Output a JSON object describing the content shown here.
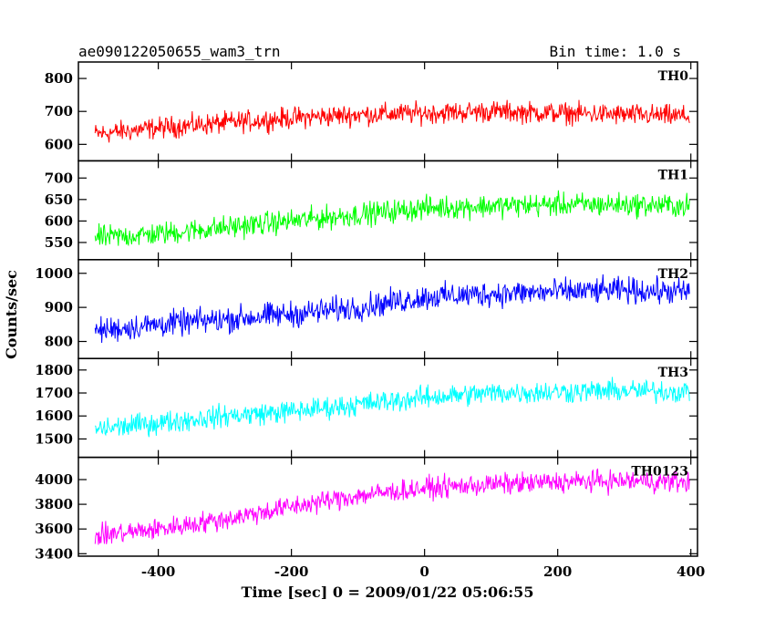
{
  "header": {
    "left_title": "ae090122050655_wam3_trn",
    "right_title": "Bin time: 1.0 s"
  },
  "chart_data": {
    "type": "line",
    "xlabel": "Time [sec] 0 = 2009/01/22 05:06:55",
    "ylabel": "Counts/sec",
    "xlim": [
      -520,
      410
    ],
    "x_ticks": [
      -400,
      -200,
      0,
      200,
      400
    ],
    "bin_time_s": 1.0,
    "panels": [
      {
        "name": "TH0",
        "color": "#ff0000",
        "ylim": [
          550,
          850
        ],
        "y_ticks": [
          600,
          700,
          800
        ],
        "trend": [
          [
            -500,
            630
          ],
          [
            -400,
            650
          ],
          [
            -300,
            665
          ],
          [
            -200,
            680
          ],
          [
            -100,
            690
          ],
          [
            0,
            695
          ],
          [
            100,
            700
          ],
          [
            200,
            695
          ],
          [
            300,
            690
          ],
          [
            400,
            685
          ]
        ],
        "noise": 30
      },
      {
        "name": "TH1",
        "color": "#00ff00",
        "ylim": [
          510,
          740
        ],
        "y_ticks": [
          550,
          600,
          650,
          700
        ],
        "trend": [
          [
            -500,
            560
          ],
          [
            -400,
            570
          ],
          [
            -300,
            585
          ],
          [
            -200,
            600
          ],
          [
            -100,
            615
          ],
          [
            0,
            630
          ],
          [
            100,
            635
          ],
          [
            200,
            638
          ],
          [
            300,
            638
          ],
          [
            400,
            635
          ]
        ],
        "noise": 25
      },
      {
        "name": "TH2",
        "color": "#0000ff",
        "ylim": [
          750,
          1040
        ],
        "y_ticks": [
          800,
          900,
          1000
        ],
        "trend": [
          [
            -500,
            830
          ],
          [
            -400,
            850
          ],
          [
            -300,
            865
          ],
          [
            -200,
            880
          ],
          [
            -100,
            900
          ],
          [
            0,
            930
          ],
          [
            100,
            940
          ],
          [
            200,
            945
          ],
          [
            300,
            950
          ],
          [
            400,
            945
          ]
        ],
        "noise": 35
      },
      {
        "name": "TH3",
        "color": "#00ffff",
        "ylim": [
          1420,
          1850
        ],
        "y_ticks": [
          1500,
          1600,
          1700,
          1800
        ],
        "trend": [
          [
            -500,
            1540
          ],
          [
            -400,
            1570
          ],
          [
            -300,
            1600
          ],
          [
            -200,
            1620
          ],
          [
            -100,
            1650
          ],
          [
            0,
            1680
          ],
          [
            100,
            1700
          ],
          [
            200,
            1705
          ],
          [
            300,
            1710
          ],
          [
            400,
            1705
          ]
        ],
        "noise": 45
      },
      {
        "name": "TH0123",
        "color": "#ff00ff",
        "ylim": [
          3380,
          4180
        ],
        "y_ticks": [
          3400,
          3600,
          3800,
          4000
        ],
        "trend": [
          [
            -500,
            3540
          ],
          [
            -400,
            3600
          ],
          [
            -300,
            3680
          ],
          [
            -200,
            3780
          ],
          [
            -100,
            3870
          ],
          [
            0,
            3930
          ],
          [
            100,
            3960
          ],
          [
            200,
            3980
          ],
          [
            300,
            3990
          ],
          [
            400,
            3980
          ]
        ],
        "noise": 80
      }
    ]
  }
}
